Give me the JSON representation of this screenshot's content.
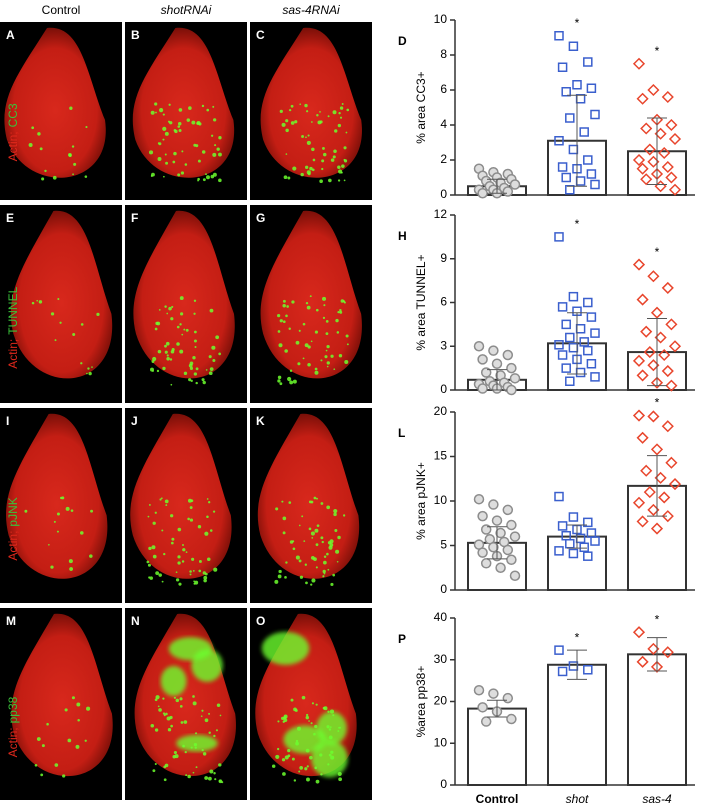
{
  "figure": {
    "columns": [
      "Control",
      "shotRNAi",
      "sas-4RNAi"
    ],
    "rows": [
      {
        "stain": "Actin;",
        "marker": "CC3",
        "panels": [
          "A",
          "B",
          "C"
        ]
      },
      {
        "stain": "Actin;",
        "marker": "TUNNEL",
        "panels": [
          "E",
          "F",
          "G"
        ]
      },
      {
        "stain": "Actin;",
        "marker": "pJNK",
        "panels": [
          "I",
          "J",
          "K"
        ]
      },
      {
        "stain": "Actin;",
        "marker": "pp38",
        "panels": [
          "M",
          "N",
          "O"
        ]
      }
    ]
  },
  "chart_data": [
    {
      "type": "bar",
      "panel": "D",
      "ylabel": "% area CC3+",
      "categories": [
        null,
        null,
        null
      ],
      "values": [
        0.5,
        3.1,
        2.5
      ],
      "errors": [
        0.4,
        2.6,
        1.9
      ],
      "colors": [
        "#8c8c8c",
        "#3a5fcd",
        "#e8452c"
      ],
      "markers": [
        "circle",
        "square",
        "diamond"
      ],
      "points": [
        [
          1.5,
          1.3,
          1.2,
          1.1,
          1.0,
          0.9,
          0.8,
          0.7,
          0.6,
          0.5,
          0.4,
          0.3,
          0.3,
          0.2,
          0.1,
          0.1
        ],
        [
          9.1,
          8.5,
          7.6,
          7.3,
          6.3,
          6.1,
          5.9,
          5.5,
          4.6,
          4.4,
          3.6,
          3.1,
          2.6,
          2.0,
          1.6,
          1.5,
          1.2,
          1.0,
          0.8,
          0.6,
          0.3
        ],
        [
          7.5,
          6.0,
          5.6,
          5.5,
          4.3,
          4.0,
          3.8,
          3.5,
          3.2,
          2.6,
          2.4,
          2.0,
          1.9,
          1.6,
          1.5,
          1.2,
          1.0,
          0.9,
          0.5,
          0.3
        ]
      ],
      "annotations": [
        null,
        "*",
        "*"
      ],
      "ylim": [
        0,
        10
      ],
      "yticks": [
        0,
        2,
        4,
        6,
        8,
        10
      ]
    },
    {
      "type": "bar",
      "panel": "H",
      "ylabel": "% area TUNNEL+",
      "categories": [
        null,
        null,
        null
      ],
      "values": [
        0.7,
        3.2,
        2.6
      ],
      "errors": [
        0.7,
        2.1,
        2.3
      ],
      "colors": [
        "#8c8c8c",
        "#3a5fcd",
        "#e8452c"
      ],
      "markers": [
        "circle",
        "square",
        "diamond"
      ],
      "points": [
        [
          3.0,
          2.7,
          2.4,
          2.1,
          1.8,
          1.5,
          1.2,
          1.0,
          0.8,
          0.6,
          0.5,
          0.4,
          0.3,
          0.2,
          0.1,
          0.1,
          0.0
        ],
        [
          10.5,
          6.4,
          6.0,
          5.7,
          5.4,
          5.0,
          4.5,
          4.2,
          3.9,
          3.6,
          3.3,
          3.1,
          2.9,
          2.7,
          2.4,
          2.1,
          1.8,
          1.5,
          1.2,
          0.9,
          0.6
        ],
        [
          8.6,
          7.8,
          7.0,
          6.2,
          5.3,
          4.5,
          4.0,
          3.6,
          3.0,
          2.6,
          2.4,
          2.0,
          1.7,
          1.3,
          1.0,
          0.5,
          0.3
        ]
      ],
      "annotations": [
        null,
        "*",
        "*"
      ],
      "ylim": [
        0,
        12
      ],
      "yticks": [
        0,
        3,
        6,
        9,
        12
      ]
    },
    {
      "type": "bar",
      "panel": "L",
      "ylabel": "% area pJNK+",
      "categories": [
        null,
        null,
        null
      ],
      "values": [
        5.3,
        6.0,
        11.7
      ],
      "errors": [
        1.8,
        1.3,
        3.4
      ],
      "colors": [
        "#8c8c8c",
        "#3a5fcd",
        "#e8452c"
      ],
      "markers": [
        "circle",
        "square",
        "diamond"
      ],
      "points": [
        [
          10.2,
          9.6,
          9.0,
          8.3,
          7.8,
          7.3,
          6.8,
          6.4,
          6.0,
          5.7,
          5.4,
          5.1,
          4.8,
          4.5,
          4.2,
          3.8,
          3.4,
          3.0,
          2.5,
          1.6
        ],
        [
          10.5,
          8.2,
          7.6,
          7.2,
          6.8,
          6.4,
          6.1,
          5.8,
          5.5,
          5.2,
          4.8,
          4.4,
          4.1,
          3.8
        ],
        [
          19.6,
          19.5,
          18.4,
          17.1,
          15.8,
          14.3,
          13.4,
          12.6,
          11.9,
          11.0,
          10.4,
          9.8,
          9.0,
          8.3,
          7.7,
          6.9
        ]
      ],
      "annotations": [
        null,
        null,
        "*"
      ],
      "ylim": [
        0,
        20
      ],
      "yticks": [
        0,
        5,
        10,
        15,
        20
      ]
    },
    {
      "type": "bar",
      "panel": "P",
      "ylabel": "%area pp38+",
      "categories": [
        "Control",
        "shot",
        "sas-4"
      ],
      "values": [
        18.3,
        28.8,
        31.3
      ],
      "errors": [
        2.0,
        3.5,
        4.0
      ],
      "colors": [
        "#8c8c8c",
        "#3a5fcd",
        "#e8452c"
      ],
      "markers": [
        "circle",
        "square",
        "diamond"
      ],
      "points": [
        [
          22.7,
          21.9,
          20.8,
          18.6,
          17.6,
          15.8,
          15.2
        ],
        [
          32.3,
          28.5,
          27.6,
          27.2
        ],
        [
          36.6,
          32.6,
          31.8,
          29.5,
          28.3
        ]
      ],
      "annotations": [
        null,
        "*",
        "*"
      ],
      "ylim": [
        0,
        40
      ],
      "yticks": [
        0,
        10,
        20,
        30,
        40
      ]
    }
  ]
}
